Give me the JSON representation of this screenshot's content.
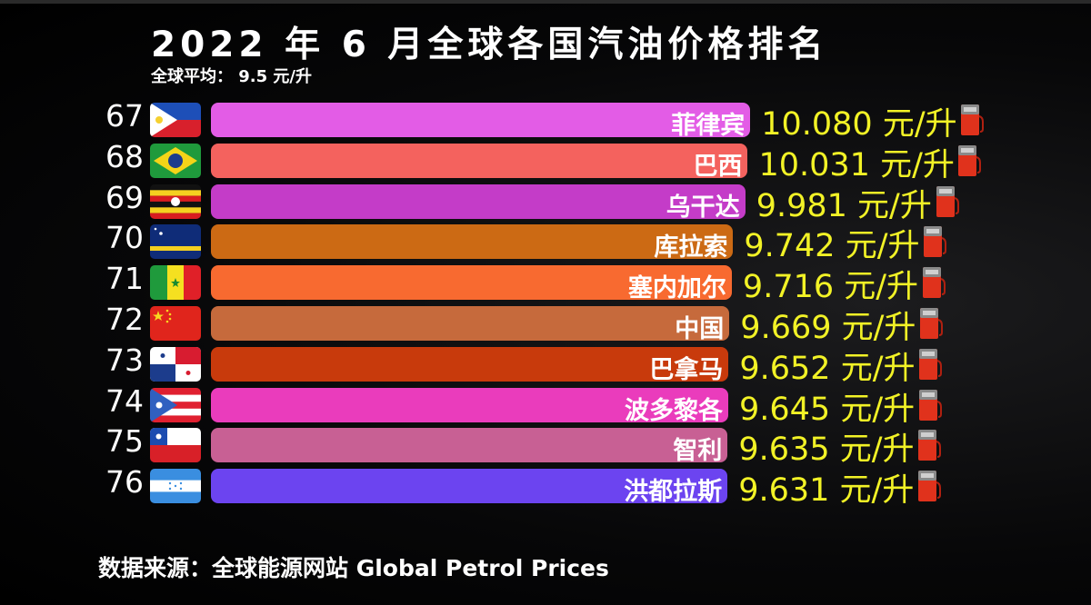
{
  "title": "2022 年 6 月全球各国汽油价格排名",
  "subtitle": "全球平均： 9.5 元/升",
  "footer": "数据来源：全球能源网站 Global Petrol Prices",
  "chart_data": {
    "type": "bar",
    "orientation": "horizontal",
    "title": "2022 年 6 月全球各国汽油价格排名",
    "unit": "元/升",
    "categories": [
      "菲律宾",
      "巴西",
      "乌干达",
      "库拉索",
      "塞内加尔",
      "中国",
      "巴拿马",
      "波多黎各",
      "智利",
      "洪都拉斯"
    ],
    "ranks": [
      67,
      68,
      69,
      70,
      71,
      72,
      73,
      74,
      75,
      76
    ],
    "values": [
      10.08,
      10.031,
      9.981,
      9.742,
      9.716,
      9.669,
      9.652,
      9.645,
      9.635,
      9.631
    ],
    "value_labels": [
      "10.080",
      "10.031",
      "9.981",
      "9.742",
      "9.716",
      "9.669",
      "9.652",
      "9.645",
      "9.635",
      "9.631"
    ],
    "flags": [
      "philippines-flag",
      "brazil-flag",
      "uganda-flag",
      "curacao-flag",
      "senegal-flag",
      "china-flag",
      "panama-flag",
      "puerto-rico-flag",
      "chile-flag",
      "honduras-flag"
    ],
    "colors": [
      "#e35ce6",
      "#f4625e",
      "#c43cc8",
      "#cc6a14",
      "#f86a30",
      "#c66a3c",
      "#c83a0c",
      "#ea3cbc",
      "#c86094",
      "#6c44f0"
    ],
    "value_color": "#f2f226",
    "icon": "fuel-pump-icon",
    "grid": false
  }
}
